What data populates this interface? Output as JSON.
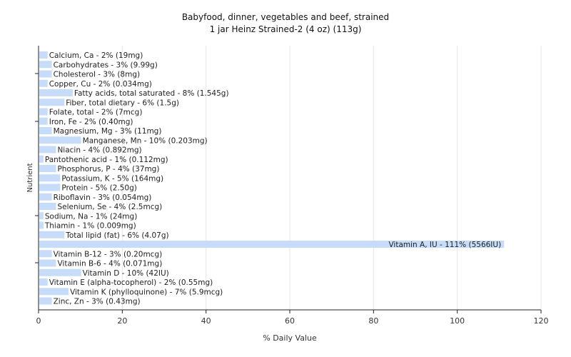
{
  "chart_data": {
    "type": "bar",
    "orientation": "horizontal",
    "title": "Babyfood, dinner, vegetables and beef, strained",
    "subtitle": "1 jar Heinz Strained-2 (4 oz) (113g)",
    "xlabel": "% Daily Value",
    "ylabel": "Nutrient",
    "xlim": [
      0,
      120
    ],
    "xticks": [
      "0",
      "20",
      "40",
      "60",
      "80",
      "100",
      "120"
    ],
    "bar_color": "#c6dcf8",
    "grid": true,
    "categories": [
      "Calcium, Ca",
      "Carbohydrates",
      "Cholesterol",
      "Copper, Cu",
      "Fatty acids, total saturated",
      "Fiber, total dietary",
      "Folate, total",
      "Iron, Fe",
      "Magnesium, Mg",
      "Manganese, Mn",
      "Niacin",
      "Pantothenic acid",
      "Phosphorus, P",
      "Potassium, K",
      "Protein",
      "Riboflavin",
      "Selenium, Se",
      "Sodium, Na",
      "Thiamin",
      "Total lipid (fat)",
      "Vitamin A, IU",
      "Vitamin B-12",
      "Vitamin B-6",
      "Vitamin D",
      "Vitamin E (alpha-tocopherol)",
      "Vitamin K (phylloquinone)",
      "Zinc, Zn"
    ],
    "values": [
      2,
      3,
      3,
      2,
      8,
      6,
      2,
      2,
      3,
      10,
      4,
      1,
      4,
      5,
      5,
      3,
      4,
      1,
      1,
      6,
      111,
      3,
      4,
      10,
      2,
      7,
      3
    ],
    "labels": [
      "Calcium, Ca - 2% (19mg)",
      "Carbohydrates - 3% (9.99g)",
      "Cholesterol - 3% (8mg)",
      "Copper, Cu - 2% (0.034mg)",
      "Fatty acids, total saturated - 8% (1.545g)",
      "Fiber, total dietary - 6% (1.5g)",
      "Folate, total - 2% (7mcg)",
      "Iron, Fe - 2% (0.40mg)",
      "Magnesium, Mg - 3% (11mg)",
      "Manganese, Mn - 10% (0.203mg)",
      "Niacin - 4% (0.892mg)",
      "Pantothenic acid - 1% (0.112mg)",
      "Phosphorus, P - 4% (37mg)",
      "Potassium, K - 5% (164mg)",
      "Protein - 5% (2.50g)",
      "Riboflavin - 3% (0.054mg)",
      "Selenium, Se - 4% (2.5mcg)",
      "Sodium, Na - 1% (24mg)",
      "Thiamin - 1% (0.009mg)",
      "Total lipid (fat) - 6% (4.07g)",
      "Vitamin A, IU - 111% (5566IU)",
      "Vitamin B-12 - 3% (0.20mcg)",
      "Vitamin B-6 - 4% (0.071mg)",
      "Vitamin D - 10% (42IU)",
      "Vitamin E (alpha-tocopherol) - 2% (0.55mg)",
      "Vitamin K (phylloquinone) - 7% (5.9mcg)",
      "Zinc, Zn - 3% (0.43mg)"
    ]
  }
}
